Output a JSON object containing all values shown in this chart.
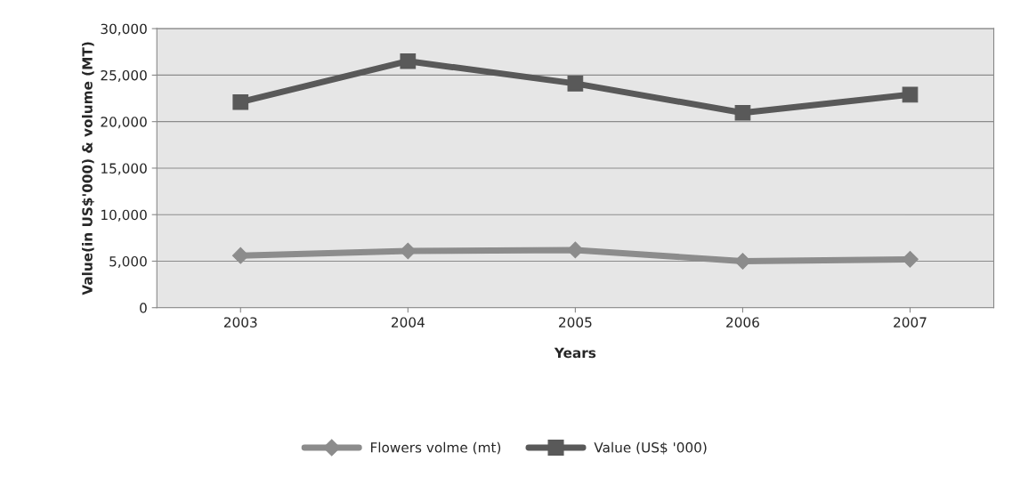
{
  "chart_data": {
    "type": "line",
    "xlabel": "Years",
    "ylabel": "Value(in US$'000) & volume (MT)",
    "categories": [
      "2003",
      "2004",
      "2005",
      "2006",
      "2007"
    ],
    "series": [
      {
        "name": "Flowers volme (mt)",
        "color": "#8c8c8c",
        "marker": "diamond",
        "values": [
          5600,
          6100,
          6200,
          5000,
          5200
        ]
      },
      {
        "name": "Value (US$ '000)",
        "color": "#595959",
        "marker": "square",
        "values": [
          22100,
          26500,
          24100,
          20950,
          22900
        ]
      }
    ],
    "ylim": [
      0,
      30000
    ],
    "yticks": [
      0,
      {
        "value": 5000,
        "label": "5,000"
      },
      {
        "value": 10000,
        "label": "10,000"
      },
      {
        "value": 15000,
        "label": "15,000"
      },
      {
        "value": 20000,
        "label": "20,000"
      },
      {
        "value": 25000,
        "label": "25,000"
      },
      {
        "value": 30000,
        "label": "30,000"
      }
    ],
    "grid": "y",
    "legend": "bottom"
  }
}
